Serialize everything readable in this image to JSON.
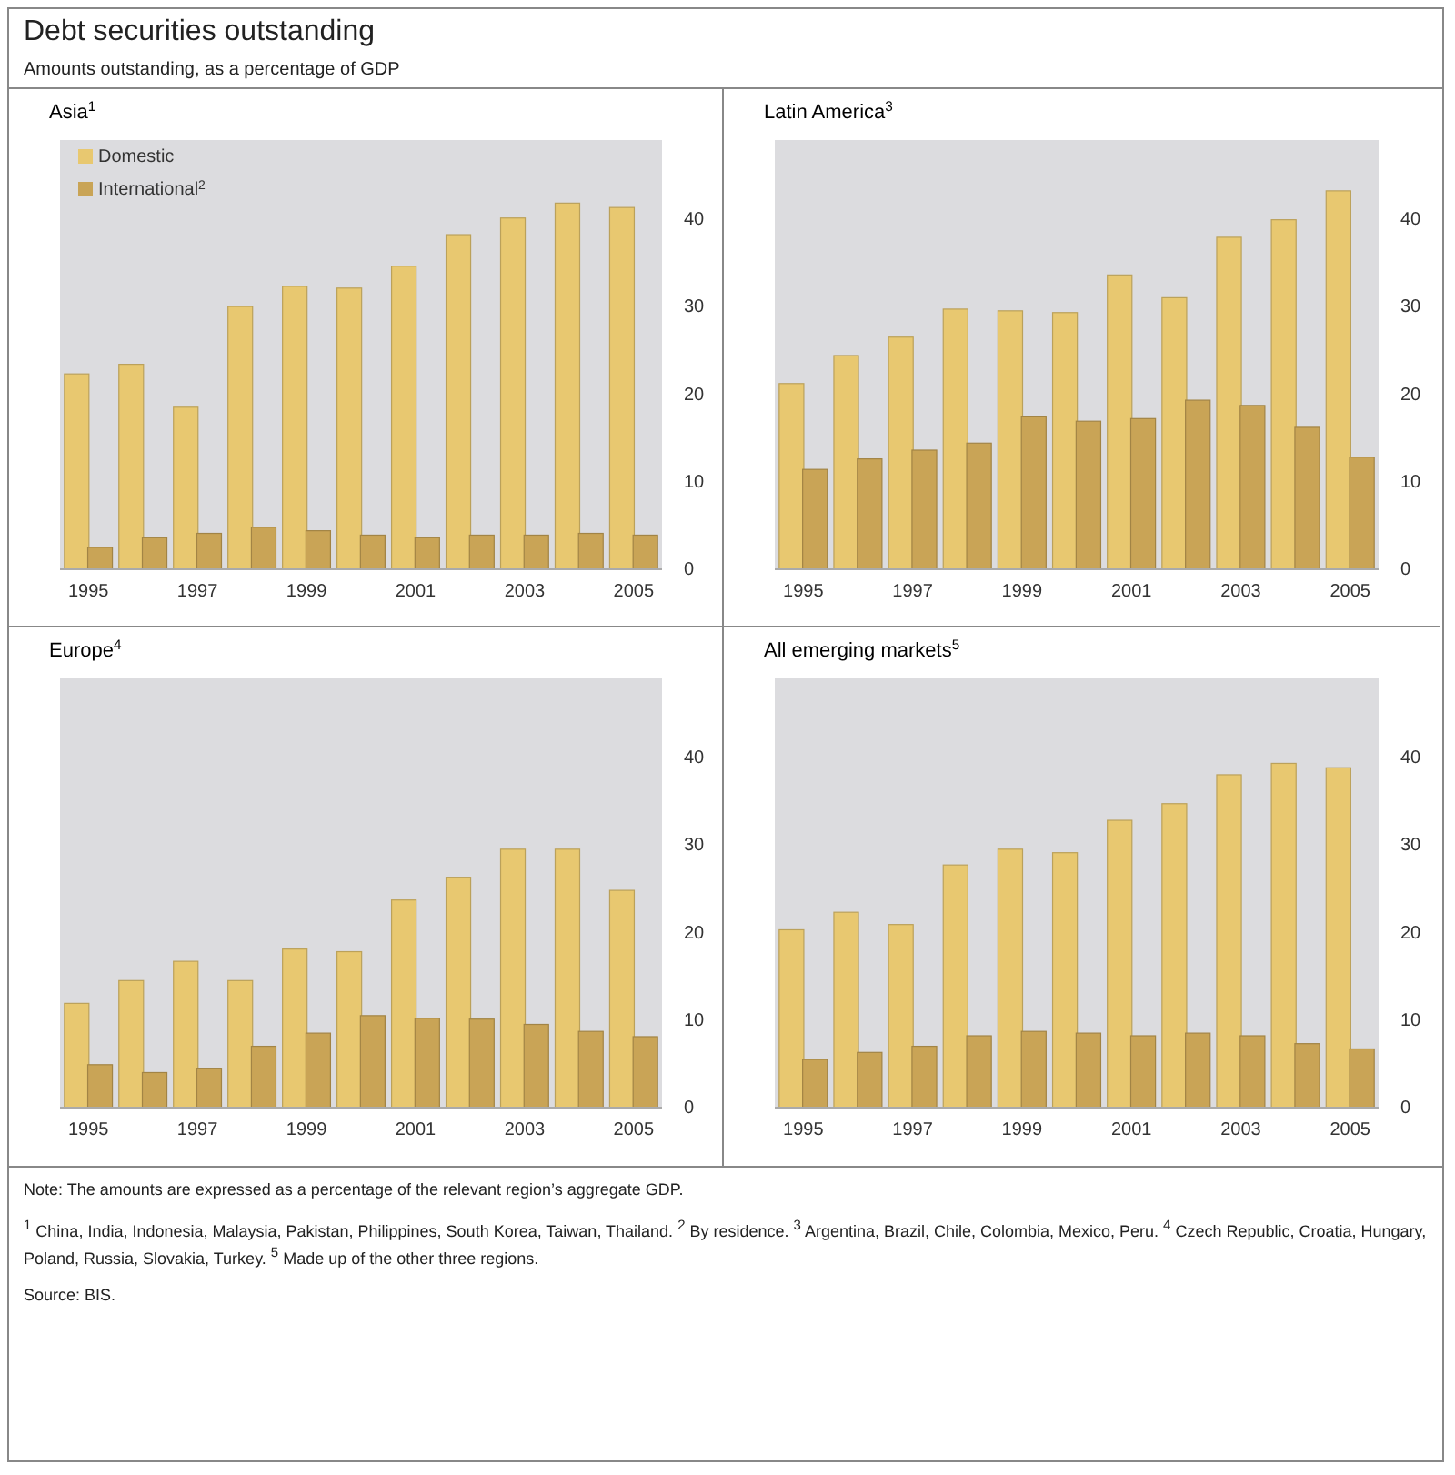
{
  "chart_data": [
    {
      "type": "other",
      "title": "Debt securities outstanding",
      "subtitle": "Amounts outstanding, as a percentage of GDP"
    },
    {
      "type": "bar",
      "title": "Asia$^{1}$",
      "categories": [
        "1995",
        null,
        "1997",
        null,
        "1999",
        null,
        "2001",
        null,
        "2003",
        null,
        "2005"
      ],
      "ylim": [
        0,
        49
      ],
      "yticks": [
        0,
        10,
        20,
        30,
        40
      ],
      "legend": "top left",
      "series": [
        {
          "name": "Domestic",
          "color": "#e8c870",
          "values": [
            22.3,
            23.4,
            18.5,
            30,
            32.3,
            32.1,
            34.6,
            38.2,
            40.1,
            41.8,
            41.3
          ]
        },
        {
          "name": "International$^{2}$",
          "color": "#c9a456",
          "values": [
            2.5,
            3.6,
            4.1,
            4.8,
            4.4,
            3.9,
            3.6,
            3.9,
            3.9,
            4.1,
            3.9
          ]
        }
      ]
    },
    {
      "type": "bar",
      "title": "Latin America$^{3}$",
      "categories": [
        "1995",
        null,
        "1997",
        null,
        "1999",
        null,
        "2001",
        null,
        "2003",
        null,
        "2005"
      ],
      "ylim": [
        0,
        49
      ],
      "yticks": [
        0,
        10,
        20,
        30,
        40
      ],
      "series": [
        {
          "color": "#e8c870",
          "values": [
            21.2,
            24.4,
            26.5,
            29.7,
            29.5,
            29.3,
            33.6,
            31,
            37.9,
            39.9,
            43.2
          ]
        },
        {
          "color": "#c9a456",
          "values": [
            11.4,
            12.6,
            13.6,
            14.4,
            17.4,
            16.9,
            17.2,
            19.3,
            18.7,
            16.2,
            12.8
          ]
        }
      ]
    },
    {
      "type": "bar",
      "title": "Europe$^{4}$",
      "categories": [
        "1995",
        null,
        "1997",
        null,
        "1999",
        null,
        "2001",
        null,
        "2003",
        null,
        "2005"
      ],
      "ylim": [
        0,
        49
      ],
      "yticks": [
        0,
        10,
        20,
        30,
        40
      ],
      "series": [
        {
          "color": "#e8c870",
          "values": [
            11.9,
            14.5,
            16.7,
            14.5,
            18.1,
            17.8,
            23.7,
            26.3,
            29.5,
            29.5,
            24.8
          ]
        },
        {
          "color": "#c9a456",
          "values": [
            4.9,
            4,
            4.5,
            7,
            8.5,
            10.5,
            10.2,
            10.1,
            9.5,
            8.7,
            8.1
          ]
        }
      ]
    },
    {
      "type": "bar",
      "title": "All emerging markets$^{5}$",
      "categories": [
        "1995",
        null,
        "1997",
        null,
        "1999",
        null,
        "2001",
        null,
        "2003",
        null,
        "2005"
      ],
      "ylim": [
        0,
        49
      ],
      "yticks": [
        0,
        10,
        20,
        30,
        40
      ],
      "series": [
        {
          "color": "#e8c870",
          "values": [
            20.3,
            22.3,
            20.9,
            27.7,
            29.5,
            29.1,
            32.8,
            34.7,
            38,
            39.3,
            38.8
          ]
        },
        {
          "color": "#c9a456",
          "values": [
            5.5,
            6.3,
            7,
            8.2,
            8.7,
            8.5,
            8.2,
            8.5,
            8.2,
            7.3,
            6.7
          ]
        }
      ]
    },
    {
      "type": "other",
      "annotations": [
        "Note: The amounts are expressed as a percentage of the relevant region’s aggregate GDP.",
        "$^{1}$ China, India, Indonesia, Malaysia, Pakistan, Philippines, South Korea, Taiwan, Thailand.  $^{2}$ By residence.  $^{3}$ Argentina, Brazil, Chile, Colombia, Mexico, Peru.  $^{4}$ Czech Republic, Croatia, Hungary, Poland, Russia, Slovakia, Turkey.  $^{5}$ Made up of the other three regions.",
        "Source: BIS."
      ]
    }
  ]
}
